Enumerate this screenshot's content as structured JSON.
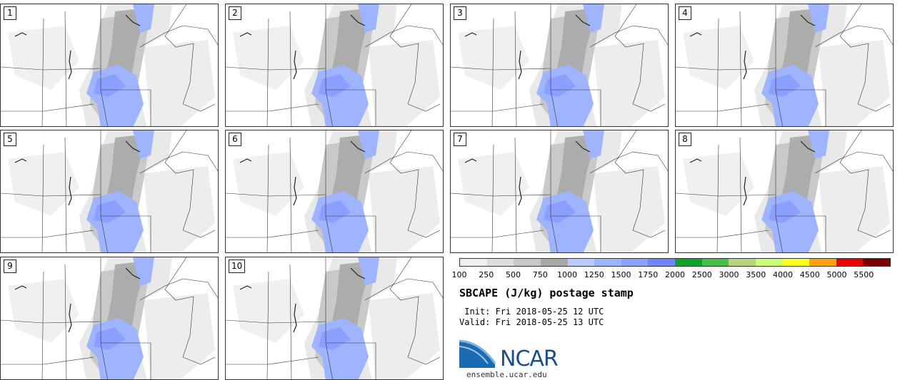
{
  "panels": [
    {
      "number": "1"
    },
    {
      "number": "2"
    },
    {
      "number": "3"
    },
    {
      "number": "4"
    },
    {
      "number": "5"
    },
    {
      "number": "6"
    },
    {
      "number": "7"
    },
    {
      "number": "8"
    },
    {
      "number": "9"
    },
    {
      "number": "10"
    }
  ],
  "colorbar": {
    "colors": [
      "#f0f0f0",
      "#dcdcdc",
      "#c8c8c8",
      "#a8a8a8",
      "#b8caff",
      "#9fb4ff",
      "#8a9fff",
      "#7085ff",
      "#11a02b",
      "#46be48",
      "#b7d47b",
      "#c8ff78",
      "#ffff20",
      "#ffa010",
      "#e80000",
      "#7a0000"
    ],
    "tick_labels": [
      "100",
      "250",
      "500",
      "750",
      "1000",
      "1250",
      "1500",
      "1750",
      "2000",
      "2500",
      "3000",
      "3500",
      "4000",
      "4500",
      "5000",
      "5500"
    ]
  },
  "title": "SBCAPE (J/kg) postage stamp",
  "init_text": " Init: Fri 2018-05-25 12 UTC",
  "valid_text": "Valid: Fri 2018-05-25 13 UTC",
  "logo": {
    "text": "NCAR",
    "url": "ensemble.ucar.edu"
  }
}
